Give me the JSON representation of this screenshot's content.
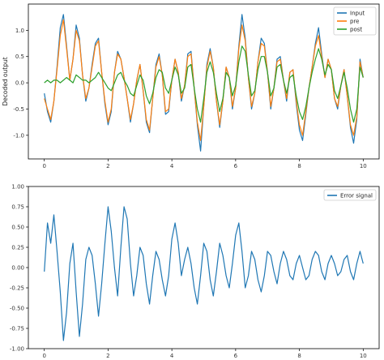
{
  "chart_data": [
    {
      "type": "line",
      "ylabel": "Decoded output",
      "xlim": [
        -0.5,
        10.5
      ],
      "ylim": [
        -1.45,
        1.5
      ],
      "x_ticks": [
        0,
        2,
        4,
        6,
        8,
        10
      ],
      "x_tick_labels": [
        "0",
        "2",
        "4",
        "6",
        "8",
        "10"
      ],
      "y_ticks": [
        -1.0,
        -0.5,
        0.0,
        0.5,
        1.0
      ],
      "y_tick_labels": [
        "-1.0",
        "-0.5",
        "0.0",
        "0.5",
        "1.0"
      ],
      "grid": false,
      "legend_position": "top-right",
      "x": [
        0,
        0.1,
        0.2,
        0.3,
        0.4,
        0.5,
        0.6,
        0.7,
        0.8,
        0.9,
        1.0,
        1.1,
        1.2,
        1.3,
        1.4,
        1.5,
        1.6,
        1.7,
        1.8,
        1.9,
        2.0,
        2.1,
        2.2,
        2.3,
        2.4,
        2.5,
        2.6,
        2.7,
        2.8,
        2.9,
        3.0,
        3.1,
        3.2,
        3.3,
        3.4,
        3.5,
        3.6,
        3.7,
        3.8,
        3.9,
        4.0,
        4.1,
        4.2,
        4.3,
        4.4,
        4.5,
        4.6,
        4.7,
        4.8,
        4.9,
        5.0,
        5.1,
        5.2,
        5.3,
        5.4,
        5.5,
        5.6,
        5.7,
        5.8,
        5.9,
        6.0,
        6.1,
        6.2,
        6.3,
        6.4,
        6.5,
        6.6,
        6.7,
        6.8,
        6.9,
        7.0,
        7.1,
        7.2,
        7.3,
        7.4,
        7.5,
        7.6,
        7.7,
        7.8,
        7.9,
        8.0,
        8.1,
        8.2,
        8.3,
        8.4,
        8.5,
        8.6,
        8.7,
        8.8,
        8.9,
        9.0,
        9.1,
        9.2,
        9.3,
        9.4,
        9.5,
        9.6,
        9.7,
        9.8,
        9.9,
        10.0
      ],
      "series": [
        {
          "name": "Input",
          "color": "#1f77b4",
          "values": [
            -0.2,
            -0.55,
            -0.75,
            -0.35,
            0.3,
            1.05,
            1.3,
            0.7,
            0.05,
            0.45,
            1.1,
            0.85,
            0.15,
            -0.35,
            -0.1,
            0.35,
            0.75,
            0.85,
            0.2,
            -0.4,
            -0.8,
            -0.55,
            0.2,
            0.6,
            0.45,
            0.1,
            -0.3,
            -0.75,
            -0.4,
            0.05,
            0.35,
            -0.15,
            -0.75,
            -0.95,
            -0.3,
            0.35,
            0.55,
            0.15,
            -0.6,
            -0.55,
            0.05,
            0.45,
            0.2,
            -0.35,
            -0.05,
            0.55,
            0.6,
            -0.1,
            -0.8,
            -1.3,
            -0.45,
            0.35,
            0.65,
            0.3,
            -0.35,
            -0.85,
            -0.35,
            0.3,
            0.1,
            -0.5,
            -0.1,
            0.7,
            1.3,
            0.85,
            0.1,
            -0.5,
            -0.2,
            0.4,
            0.85,
            0.75,
            0.2,
            -0.5,
            -0.1,
            0.45,
            0.5,
            0.05,
            -0.35,
            0.2,
            0.25,
            -0.4,
            -0.9,
            -1.1,
            -0.6,
            -0.1,
            0.3,
            0.75,
            1.05,
            0.55,
            0.1,
            0.45,
            0.25,
            -0.3,
            -0.5,
            -0.05,
            0.25,
            -0.25,
            -0.85,
            -1.15,
            -0.7,
            0.45,
            0.1
          ]
        },
        {
          "name": "pre",
          "color": "#ff7f0e",
          "values": [
            -0.3,
            -0.5,
            -0.7,
            -0.35,
            0.25,
            0.9,
            1.2,
            0.65,
            0.05,
            0.45,
            1.0,
            0.8,
            0.15,
            -0.3,
            -0.1,
            0.3,
            0.7,
            0.8,
            0.2,
            -0.35,
            -0.75,
            -0.5,
            0.2,
            0.55,
            0.45,
            0.1,
            -0.3,
            -0.7,
            -0.4,
            0.05,
            0.35,
            -0.15,
            -0.7,
            -0.9,
            -0.3,
            0.3,
            0.5,
            0.15,
            -0.55,
            -0.5,
            0.05,
            0.45,
            0.2,
            -0.3,
            -0.05,
            0.5,
            0.55,
            -0.1,
            -0.75,
            -1.1,
            -0.45,
            0.3,
            0.6,
            0.3,
            -0.35,
            -0.8,
            -0.35,
            0.3,
            0.1,
            -0.45,
            -0.1,
            0.65,
            1.1,
            0.8,
            0.1,
            -0.45,
            -0.2,
            0.4,
            0.75,
            0.7,
            0.2,
            -0.45,
            -0.1,
            0.4,
            0.45,
            0.05,
            -0.3,
            0.2,
            0.25,
            -0.35,
            -0.8,
            -1.0,
            -0.55,
            -0.1,
            0.3,
            0.7,
            0.9,
            0.5,
            0.1,
            0.45,
            0.25,
            -0.3,
            -0.45,
            -0.05,
            0.25,
            -0.25,
            -0.8,
            -1.0,
            -0.65,
            0.4,
            0.1
          ]
        },
        {
          "name": "post",
          "color": "#2ca02c",
          "values": [
            0.0,
            0.05,
            0.0,
            0.05,
            0.05,
            0.0,
            0.05,
            0.1,
            0.05,
            0.0,
            0.15,
            0.1,
            0.05,
            0.05,
            0.0,
            0.05,
            0.1,
            0.2,
            0.1,
            0.0,
            -0.1,
            -0.15,
            0.0,
            0.15,
            0.2,
            0.05,
            -0.05,
            -0.2,
            -0.25,
            -0.05,
            0.15,
            0.05,
            -0.25,
            -0.4,
            -0.2,
            0.1,
            0.25,
            0.2,
            -0.1,
            -0.2,
            0.05,
            0.3,
            0.15,
            -0.2,
            -0.1,
            0.3,
            0.35,
            -0.1,
            -0.5,
            -0.75,
            -0.3,
            0.2,
            0.4,
            0.2,
            -0.2,
            -0.55,
            -0.3,
            0.2,
            0.1,
            -0.25,
            -0.05,
            0.4,
            0.7,
            0.6,
            0.15,
            -0.25,
            -0.15,
            0.25,
            0.5,
            0.5,
            0.2,
            -0.25,
            -0.1,
            0.3,
            0.35,
            0.05,
            -0.2,
            0.1,
            0.15,
            -0.25,
            -0.55,
            -0.7,
            -0.45,
            -0.1,
            0.2,
            0.45,
            0.65,
            0.45,
            0.15,
            0.35,
            0.25,
            -0.15,
            -0.3,
            -0.05,
            0.2,
            -0.1,
            -0.5,
            -0.75,
            -0.5,
            0.3,
            0.1
          ]
        }
      ]
    },
    {
      "type": "line",
      "xlim": [
        -0.5,
        10.5
      ],
      "ylim": [
        -1.0,
        1.0
      ],
      "x_ticks": [
        0,
        2,
        4,
        6,
        8,
        10
      ],
      "x_tick_labels": [
        "0",
        "2",
        "4",
        "6",
        "8",
        "10"
      ],
      "y_ticks": [
        -1.0,
        -0.75,
        -0.5,
        -0.25,
        0.0,
        0.25,
        0.5,
        0.75,
        1.0
      ],
      "y_tick_labels": [
        "-1.00",
        "-0.75",
        "-0.50",
        "-0.25",
        "0.00",
        "0.25",
        "0.50",
        "0.75",
        "1.00"
      ],
      "grid": false,
      "legend_position": "top-right",
      "x": [
        0,
        0.1,
        0.2,
        0.3,
        0.4,
        0.5,
        0.6,
        0.7,
        0.8,
        0.9,
        1.0,
        1.1,
        1.2,
        1.3,
        1.4,
        1.5,
        1.6,
        1.7,
        1.8,
        1.9,
        2.0,
        2.1,
        2.2,
        2.3,
        2.4,
        2.5,
        2.6,
        2.7,
        2.8,
        2.9,
        3.0,
        3.1,
        3.2,
        3.3,
        3.4,
        3.5,
        3.6,
        3.7,
        3.8,
        3.9,
        4.0,
        4.1,
        4.2,
        4.3,
        4.4,
        4.5,
        4.6,
        4.7,
        4.8,
        4.9,
        5.0,
        5.1,
        5.2,
        5.3,
        5.4,
        5.5,
        5.6,
        5.7,
        5.8,
        5.9,
        6.0,
        6.1,
        6.2,
        6.3,
        6.4,
        6.5,
        6.6,
        6.7,
        6.8,
        6.9,
        7.0,
        7.1,
        7.2,
        7.3,
        7.4,
        7.5,
        7.6,
        7.7,
        7.8,
        7.9,
        8.0,
        8.1,
        8.2,
        8.3,
        8.4,
        8.5,
        8.6,
        8.7,
        8.8,
        8.9,
        9.0,
        9.1,
        9.2,
        9.3,
        9.4,
        9.5,
        9.6,
        9.7,
        9.8,
        9.9,
        10.0
      ],
      "series": [
        {
          "name": "Error signal",
          "color": "#1f77b4",
          "values": [
            -0.05,
            0.55,
            0.3,
            0.65,
            0.2,
            -0.3,
            -0.9,
            -0.55,
            0.05,
            0.3,
            -0.3,
            -0.85,
            -0.45,
            0.1,
            0.25,
            0.15,
            -0.2,
            -0.6,
            -0.2,
            0.3,
            0.75,
            0.45,
            0.0,
            -0.35,
            0.25,
            0.75,
            0.6,
            0.05,
            -0.35,
            -0.1,
            0.25,
            0.15,
            -0.2,
            -0.45,
            -0.1,
            0.2,
            0.1,
            -0.15,
            -0.35,
            -0.1,
            0.35,
            0.55,
            0.3,
            -0.1,
            0.1,
            0.25,
            0.05,
            -0.25,
            -0.45,
            -0.1,
            0.3,
            0.2,
            -0.15,
            -0.35,
            -0.05,
            0.3,
            0.15,
            -0.1,
            -0.25,
            0.05,
            0.4,
            0.55,
            0.2,
            -0.25,
            -0.1,
            0.2,
            0.1,
            -0.15,
            -0.3,
            -0.1,
            0.2,
            0.15,
            -0.05,
            -0.2,
            0.05,
            0.2,
            0.1,
            -0.1,
            -0.15,
            0.05,
            0.15,
            0.0,
            -0.15,
            -0.1,
            0.1,
            0.2,
            0.15,
            -0.05,
            -0.15,
            0.05,
            0.15,
            0.05,
            -0.1,
            -0.05,
            0.1,
            0.15,
            -0.05,
            -0.15,
            0.05,
            0.2,
            0.05
          ]
        }
      ]
    }
  ]
}
